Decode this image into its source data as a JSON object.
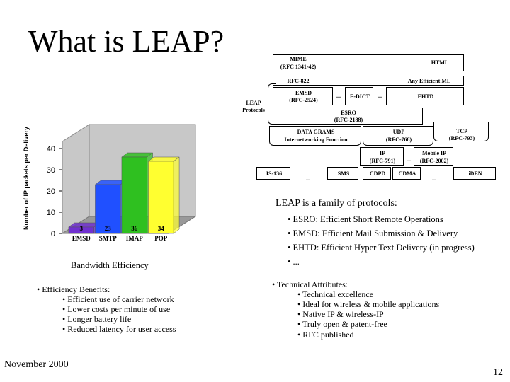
{
  "slide": {
    "title": "What is LEAP?",
    "footer_date": "November 2000",
    "page_number": "12"
  },
  "chart_data": {
    "type": "bar",
    "categories": [
      "EMSD",
      "SMTP",
      "IMAP",
      "POP"
    ],
    "values": [
      3,
      23,
      36,
      34
    ],
    "value_labels": [
      "3",
      "23",
      "36",
      "34"
    ],
    "ylabel": "Number of IP packets per Delivery",
    "xlabel": "Bandwidth Efficiency",
    "yticks": [
      0,
      10,
      20,
      30,
      40
    ],
    "ylim": [
      0,
      40
    ],
    "colors": [
      "#7030d0",
      "#2050ff",
      "#2fc020",
      "#ffff30"
    ],
    "grid": false
  },
  "protocol_stack": {
    "mime": "MIME",
    "mime_rfc": "(RFC 1341-42)",
    "html": "HTML",
    "rfc822": "RFC-822",
    "any_efficient_ml": "Any Efficient ML",
    "leap_label_1": "LEAP",
    "leap_label_2": "Protocols",
    "emsd": "EMSD",
    "emsd_rfc": "(RFC-2524)",
    "ellipsis": "...",
    "edict": "E-DICT",
    "ehtd": "EHTD",
    "esro": "ESRO",
    "esro_rfc": "(RFC-2188)",
    "datagrams": "DATA GRAMS",
    "iwf": "Internetworking Function",
    "udp": "UDP",
    "udp_rfc": "(RFC-768)",
    "tcp": "TCP",
    "tcp_rfc": "(RFC-793)",
    "ip": "IP",
    "ip_rfc": "(RFC-791)",
    "mobile_ip": "Mobile IP",
    "mobile_ip_rfc": "(RFC-2002)",
    "is136": "IS-136",
    "sms": "SMS",
    "cdpd": "CDPD",
    "cdma": "CDMA",
    "iden": "iDEN"
  },
  "leap_family": {
    "heading": "LEAP is a family of protocols:",
    "items": [
      "• ESRO: Efficient Short Remote Operations",
      "• EMSD: Efficient Mail Submission & Delivery",
      "• EHTD: Efficient Hyper Text Delivery (in progress)",
      "• ..."
    ]
  },
  "efficiency": {
    "heading": "• Efficiency Benefits:",
    "items": [
      "• Efficient use of carrier network",
      "• Lower costs per minute of use",
      "• Longer battery life",
      "• Reduced latency for user access"
    ]
  },
  "technical": {
    "heading": "• Technical Attributes:",
    "items": [
      "• Technical excellence",
      "• Ideal for wireless & mobile applications",
      "• Native IP & wireless-IP",
      "• Truly open & patent-free",
      "• RFC published"
    ]
  }
}
